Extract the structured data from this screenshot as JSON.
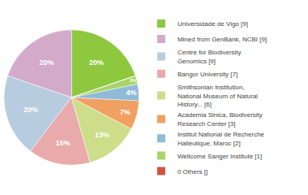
{
  "chart_data": {
    "type": "pie",
    "categories": [
      "Universidade de Vigo [9]",
      "Mined from GenBank, NCBI [9]",
      "Centre for Biodiversity\nGenomics [9]",
      "Bangor University [7]",
      "Smithsonian Institution,\nNational Museum of Natural\nHistory... [6]",
      "Academia Sinica, Biodiversity\nResearch Center [3]",
      "Institut National de Recherche\nHalieutique, Maroc [2]",
      "Wellcome Sanger Institute [1]",
      "0 Others []"
    ],
    "values": [
      20,
      20,
      20,
      15,
      13,
      7,
      4,
      2,
      0
    ],
    "value_labels": [
      "20%",
      "20%",
      "20%",
      "15%",
      "13%",
      "7%",
      "4%",
      "2%",
      null
    ],
    "colors": [
      "#8dc83e",
      "#d4aacb",
      "#b8ccdf",
      "#e8aaaa",
      "#cedd8a",
      "#f0a060",
      "#90bbd8",
      "#a8d468",
      "#cc5544"
    ],
    "data_labels": true,
    "legend": "right"
  }
}
